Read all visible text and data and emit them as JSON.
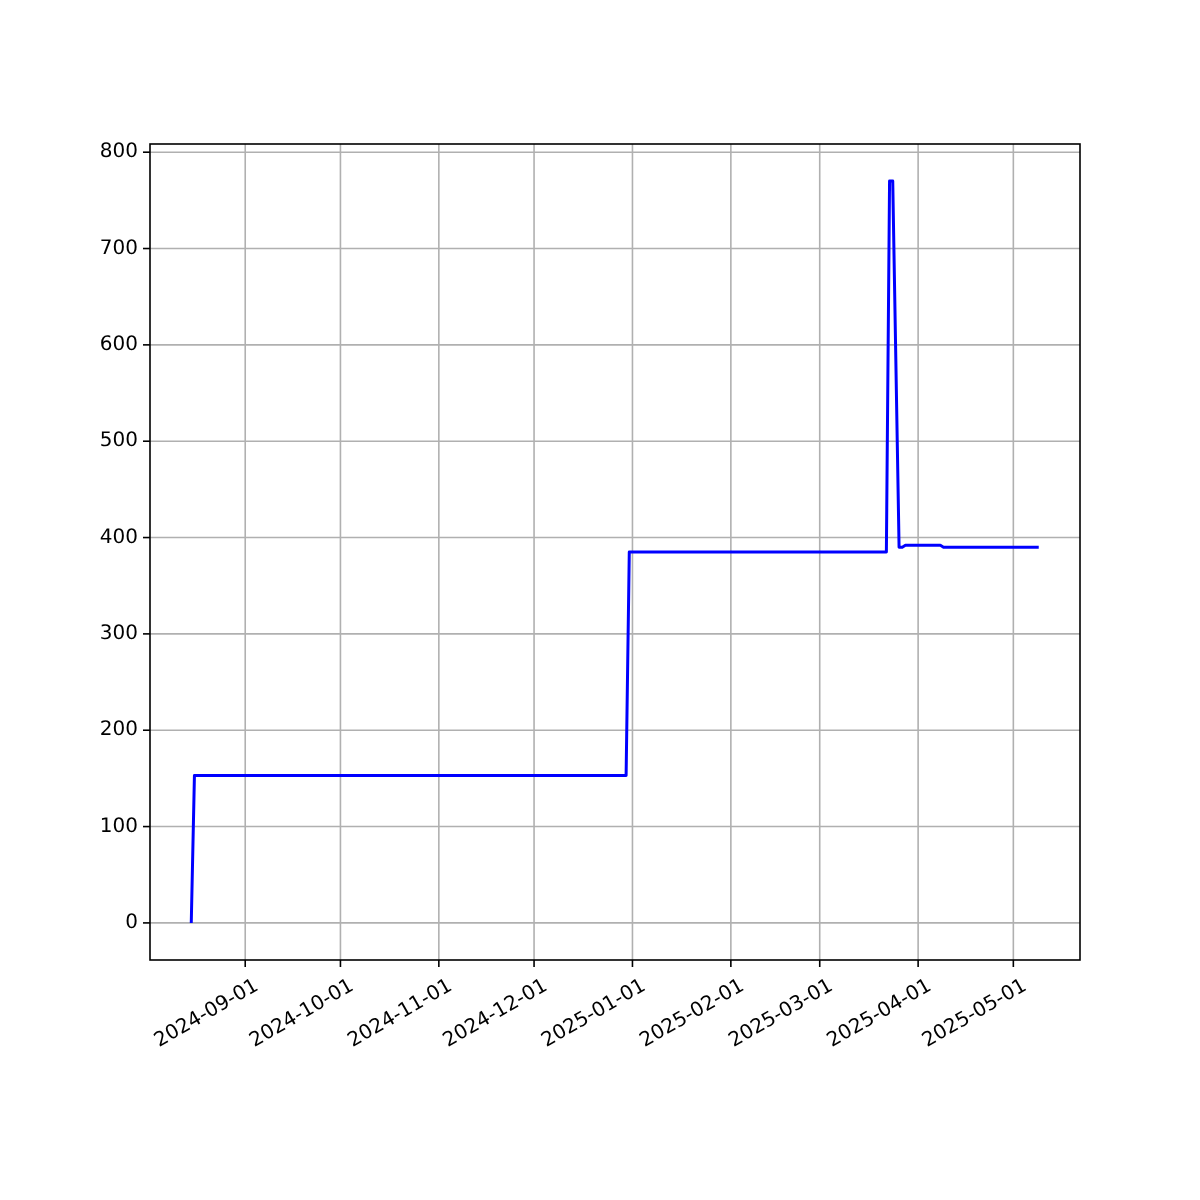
{
  "chart_data": {
    "type": "line",
    "x": [
      "2024-08-15",
      "2024-08-16",
      "2024-12-30",
      "2024-12-31",
      "2025-03-22",
      "2025-03-23",
      "2025-03-24",
      "2025-03-26",
      "2025-03-27",
      "2025-03-28",
      "2025-04-08",
      "2025-04-09",
      "2025-05-09"
    ],
    "series": [
      {
        "color": "#0000ff",
        "values": [
          0,
          153,
          153,
          385,
          385,
          770,
          770,
          390,
          390,
          392,
          392,
          390,
          390
        ]
      }
    ],
    "xlim": [
      "2024-08-02",
      "2025-05-22"
    ],
    "ylim": [
      -38.5,
      808.5
    ],
    "xticks": [
      {
        "value": "2024-09-01",
        "label": "2024-09-01"
      },
      {
        "value": "2024-10-01",
        "label": "2024-10-01"
      },
      {
        "value": "2024-11-01",
        "label": "2024-11-01"
      },
      {
        "value": "2024-12-01",
        "label": "2024-12-01"
      },
      {
        "value": "2025-01-01",
        "label": "2025-01-01"
      },
      {
        "value": "2025-02-01",
        "label": "2025-02-01"
      },
      {
        "value": "2025-03-01",
        "label": "2025-03-01"
      },
      {
        "value": "2025-04-01",
        "label": "2025-04-01"
      },
      {
        "value": "2025-05-01",
        "label": "2025-05-01"
      }
    ],
    "yticks": [
      0,
      100,
      200,
      300,
      400,
      500,
      600,
      700,
      800
    ],
    "grid": true,
    "marker": "none",
    "line_style": "solid"
  }
}
